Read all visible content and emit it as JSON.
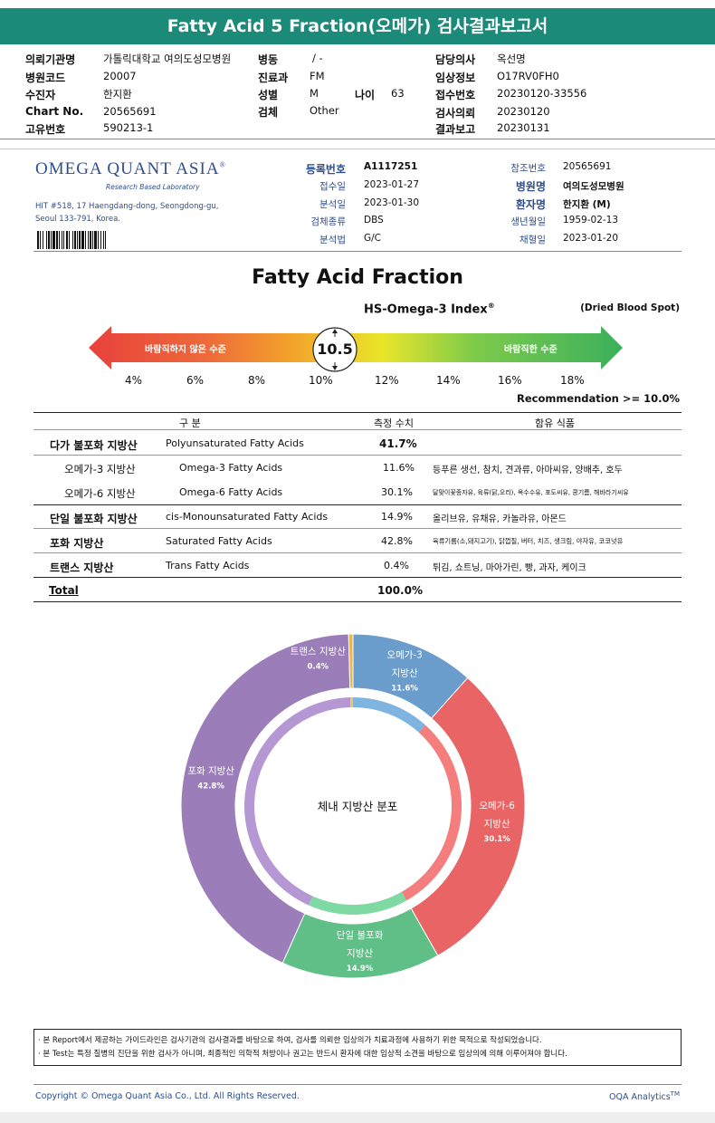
{
  "header": {
    "title": "Fatty Acid 5 Fraction(오메가) 검사결과보고서",
    "col1": [
      {
        "label": "의뢰기관명",
        "value": "가톨릭대학교 여의도성모병원"
      },
      {
        "label": "병원코드",
        "value": "20007"
      },
      {
        "label": "수진자",
        "value": "한지환"
      },
      {
        "label": "Chart No.",
        "value": "20565691"
      },
      {
        "label": "고유번호",
        "value": "590213-1"
      }
    ],
    "col2": [
      {
        "label": "병동",
        "value": "/ -"
      },
      {
        "label": "진료과",
        "value": "FM"
      },
      {
        "label": "성별",
        "value": "M"
      },
      {
        "label": "검체",
        "value": "Other"
      }
    ],
    "age": {
      "label": "나이",
      "value": "63"
    },
    "col3": [
      {
        "label": "담당의사",
        "value": "옥선명"
      },
      {
        "label": "임상정보",
        "value": "O17RV0FH0"
      },
      {
        "label": "접수번호",
        "value": "20230120-33556"
      },
      {
        "label": "검사의뢰",
        "value": "20230120"
      },
      {
        "label": "결과보고",
        "value": "20230131"
      }
    ]
  },
  "lab": {
    "name": "OMEGA QUANT ASIA",
    "reg": "®",
    "tagline": "Research Based Laboratory",
    "address1": "HIT #518, 17 Haengdang-dong, Seongdong-gu,",
    "address2": "Seoul 133-791, Korea."
  },
  "info_left": [
    {
      "label": "등록번호",
      "value": "A1117251"
    },
    {
      "label": "접수일",
      "value": "2023-01-27"
    },
    {
      "label": "분석일",
      "value": "2023-01-30"
    },
    {
      "label": "검체종류",
      "value": "DBS"
    },
    {
      "label": "분석법",
      "value": "G/C"
    }
  ],
  "info_right": [
    {
      "label": "참조번호",
      "value": "20565691"
    },
    {
      "label": "병원명",
      "value": "여의도성모병원"
    },
    {
      "label": "환자명",
      "value": "한지환 (M)"
    },
    {
      "label": "생년월일",
      "value": "1959-02-13"
    },
    {
      "label": "채혈일",
      "value": "2023-01-20"
    }
  ],
  "section_title": "Fatty Acid Fraction",
  "index": {
    "title": "HS-Omega-3 Index",
    "reg": "®",
    "sample": "(Dried Blood Spot)",
    "value": "10.5",
    "left_label": "바람직하지 않은 수준",
    "right_label": "바람직한 수준",
    "scale": [
      "4%",
      "6%",
      "8%",
      "10%",
      "12%",
      "14%",
      "16%",
      "18%"
    ],
    "recommendation": "Recommendation  >= 10.0%",
    "colors": {
      "red": "#e8413c",
      "orange": "#f3a32b",
      "yellow": "#e9e52a",
      "green": "#3aaf5c"
    }
  },
  "table": {
    "headers": [
      "구 분",
      "측정 수치",
      "함유 식품"
    ],
    "rows": [
      {
        "ko": "다가 불포화 지방산",
        "en": "Polyunsaturated Fatty Acids",
        "value": "41.7%",
        "food": ""
      },
      {
        "ko": "오메가-3 지방산",
        "en": "Omega-3 Fatty Acids",
        "value": "11.6%",
        "food": "등푸른 생선, 참치, 견과류, 아마씨유, 양배추, 호두"
      },
      {
        "ko": "오메가-6 지방산",
        "en": "Omega-6 Fatty Acids",
        "value": "30.1%",
        "food": "달맞이꽃종자유, 육류(닭,오리), 옥수수유, 포도씨유, 콩기름, 해바라기씨유"
      },
      {
        "ko": "단일 불포화 지방산",
        "en": "cis-Monounsaturated Fatty Acids",
        "value": "14.9%",
        "food": "올리브유, 유채유, 카놀라유, 아몬드"
      },
      {
        "ko": "포화 지방산",
        "en": "Saturated Fatty Acids",
        "value": "42.8%",
        "food": "육류기름(소,돼지고기), 닭껍질, 버터, 치즈, 생크림, 야자유, 코코넛유"
      },
      {
        "ko": "트랜스 지방산",
        "en": "Trans Fatty Acids",
        "value": "0.4%",
        "food": "튀김, 쇼트닝, 마아가린, 빵, 과자, 케이크"
      }
    ],
    "total_label": "Total",
    "total_value": "100.0%"
  },
  "chart_data": {
    "type": "pie",
    "title": "체내 지방산 분포",
    "slices": [
      {
        "name": "오메가-3 지방산",
        "value": 11.6,
        "label": "11.6%",
        "color": "#6a9ccc",
        "inner": "#7fb4e0"
      },
      {
        "name": "오메가-6 지방산",
        "value": 30.1,
        "label": "30.1%",
        "color": "#e86465",
        "inner": "#f47d7d"
      },
      {
        "name": "단일 불포화 지방산",
        "value": 14.9,
        "label": "14.9%",
        "color": "#5fbf86",
        "inner": "#7fd9a2"
      },
      {
        "name": "포화 지방산",
        "value": 42.8,
        "label": "42.8%",
        "color": "#9b7eb9",
        "inner": "#b597d4"
      },
      {
        "name": "트랜스 지방산",
        "value": 0.4,
        "label": "0.4%",
        "color": "#e8b84a",
        "inner": "#f0c75a"
      }
    ],
    "slice_titles": [
      [
        "오메가-3",
        "지방산"
      ],
      [
        "오메가-6",
        "지방산"
      ],
      [
        "단일 불포화",
        "지방산"
      ],
      [
        "포화 지방산"
      ],
      [
        "트랜스 지방산"
      ]
    ]
  },
  "notes": [
    "· 본 Report에서 제공하는 가이드라인은 검사기관의 검사결과를 바탕으로 하여, 검사를 의뢰한 임상의가 치료과정에 사용하기 위한 목적으로 작성되었습니다.",
    "· 본 Test는 특정 질병의 진단을 위한 검사가 아니며, 최종적인 의학적 처방이나 권고는 반드시 환자에 대한 임상적 소견을 바탕으로 임상의에 의해 이루어져야 합니다."
  ],
  "footer": {
    "copyright": "Copyright © Omega Quant Asia Co., Ltd.  All Rights Reserved.",
    "brand": "OQA Analytics",
    "tm": "TM"
  }
}
